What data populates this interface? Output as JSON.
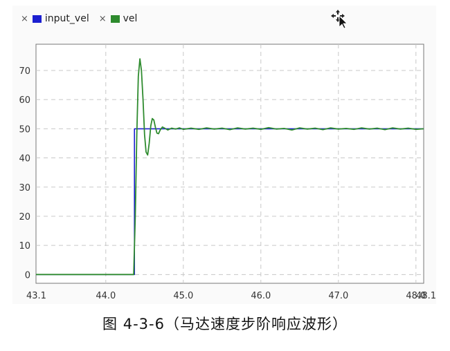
{
  "legend": [
    {
      "close": "×",
      "label": "input_vel",
      "color": "#1b1fd0"
    },
    {
      "close": "×",
      "label": "vel",
      "color": "#2e8b2e"
    }
  ],
  "cursor_icon": "move-cursor-icon",
  "caption": "图 4-3-6（马达速度步阶响应波形）",
  "chart_data": {
    "type": "line",
    "title": "",
    "xlabel": "",
    "ylabel": "",
    "xlim": [
      43.1,
      48.1
    ],
    "ylim": [
      -3,
      79
    ],
    "grid": true,
    "x_ticks": [
      "43.1",
      "44.0",
      "45.0",
      "46.0",
      "47.0",
      "48.0"
    ],
    "x_tick_values": [
      43.1,
      44.0,
      45.0,
      46.0,
      47.0,
      48.0
    ],
    "x_end_label": "48.1",
    "y_ticks": [
      0,
      10,
      20,
      30,
      40,
      50,
      60,
      70
    ],
    "series": [
      {
        "name": "input_vel",
        "color": "#1b1fd0",
        "x": [
          43.1,
          44.37,
          44.37,
          48.1
        ],
        "y": [
          0,
          0,
          50,
          50
        ]
      },
      {
        "name": "vel",
        "color": "#2e8b2e",
        "x": [
          43.1,
          44.36,
          44.38,
          44.4,
          44.42,
          44.44,
          44.46,
          44.48,
          44.5,
          44.52,
          44.54,
          44.56,
          44.58,
          44.6,
          44.62,
          44.64,
          44.66,
          44.68,
          44.7,
          44.73,
          44.76,
          44.8,
          44.85,
          44.9,
          44.95,
          45.0,
          45.1,
          45.2,
          45.3,
          45.4,
          45.5,
          45.6,
          45.7,
          45.8,
          45.9,
          46.0,
          46.1,
          46.2,
          46.3,
          46.4,
          46.5,
          46.6,
          46.7,
          46.8,
          46.9,
          47.0,
          47.1,
          47.2,
          47.3,
          47.4,
          47.5,
          47.6,
          47.7,
          47.8,
          47.9,
          48.0,
          48.1
        ],
        "y": [
          0,
          0,
          20,
          48,
          68,
          74,
          70,
          60,
          48,
          42,
          41,
          45,
          51,
          53.5,
          53,
          50.5,
          48.5,
          48.3,
          49.5,
          50.6,
          50.2,
          49.6,
          50.2,
          49.9,
          50.3,
          49.8,
          50.2,
          49.8,
          50.3,
          49.9,
          50.2,
          49.7,
          50.3,
          49.9,
          50.2,
          49.8,
          50.4,
          49.9,
          50.1,
          49.6,
          50.3,
          49.9,
          50.2,
          49.7,
          50.3,
          49.9,
          50.1,
          49.8,
          50.3,
          49.9,
          50.2,
          49.7,
          50.3,
          49.9,
          50.2,
          49.8,
          50.0
        ]
      }
    ]
  }
}
